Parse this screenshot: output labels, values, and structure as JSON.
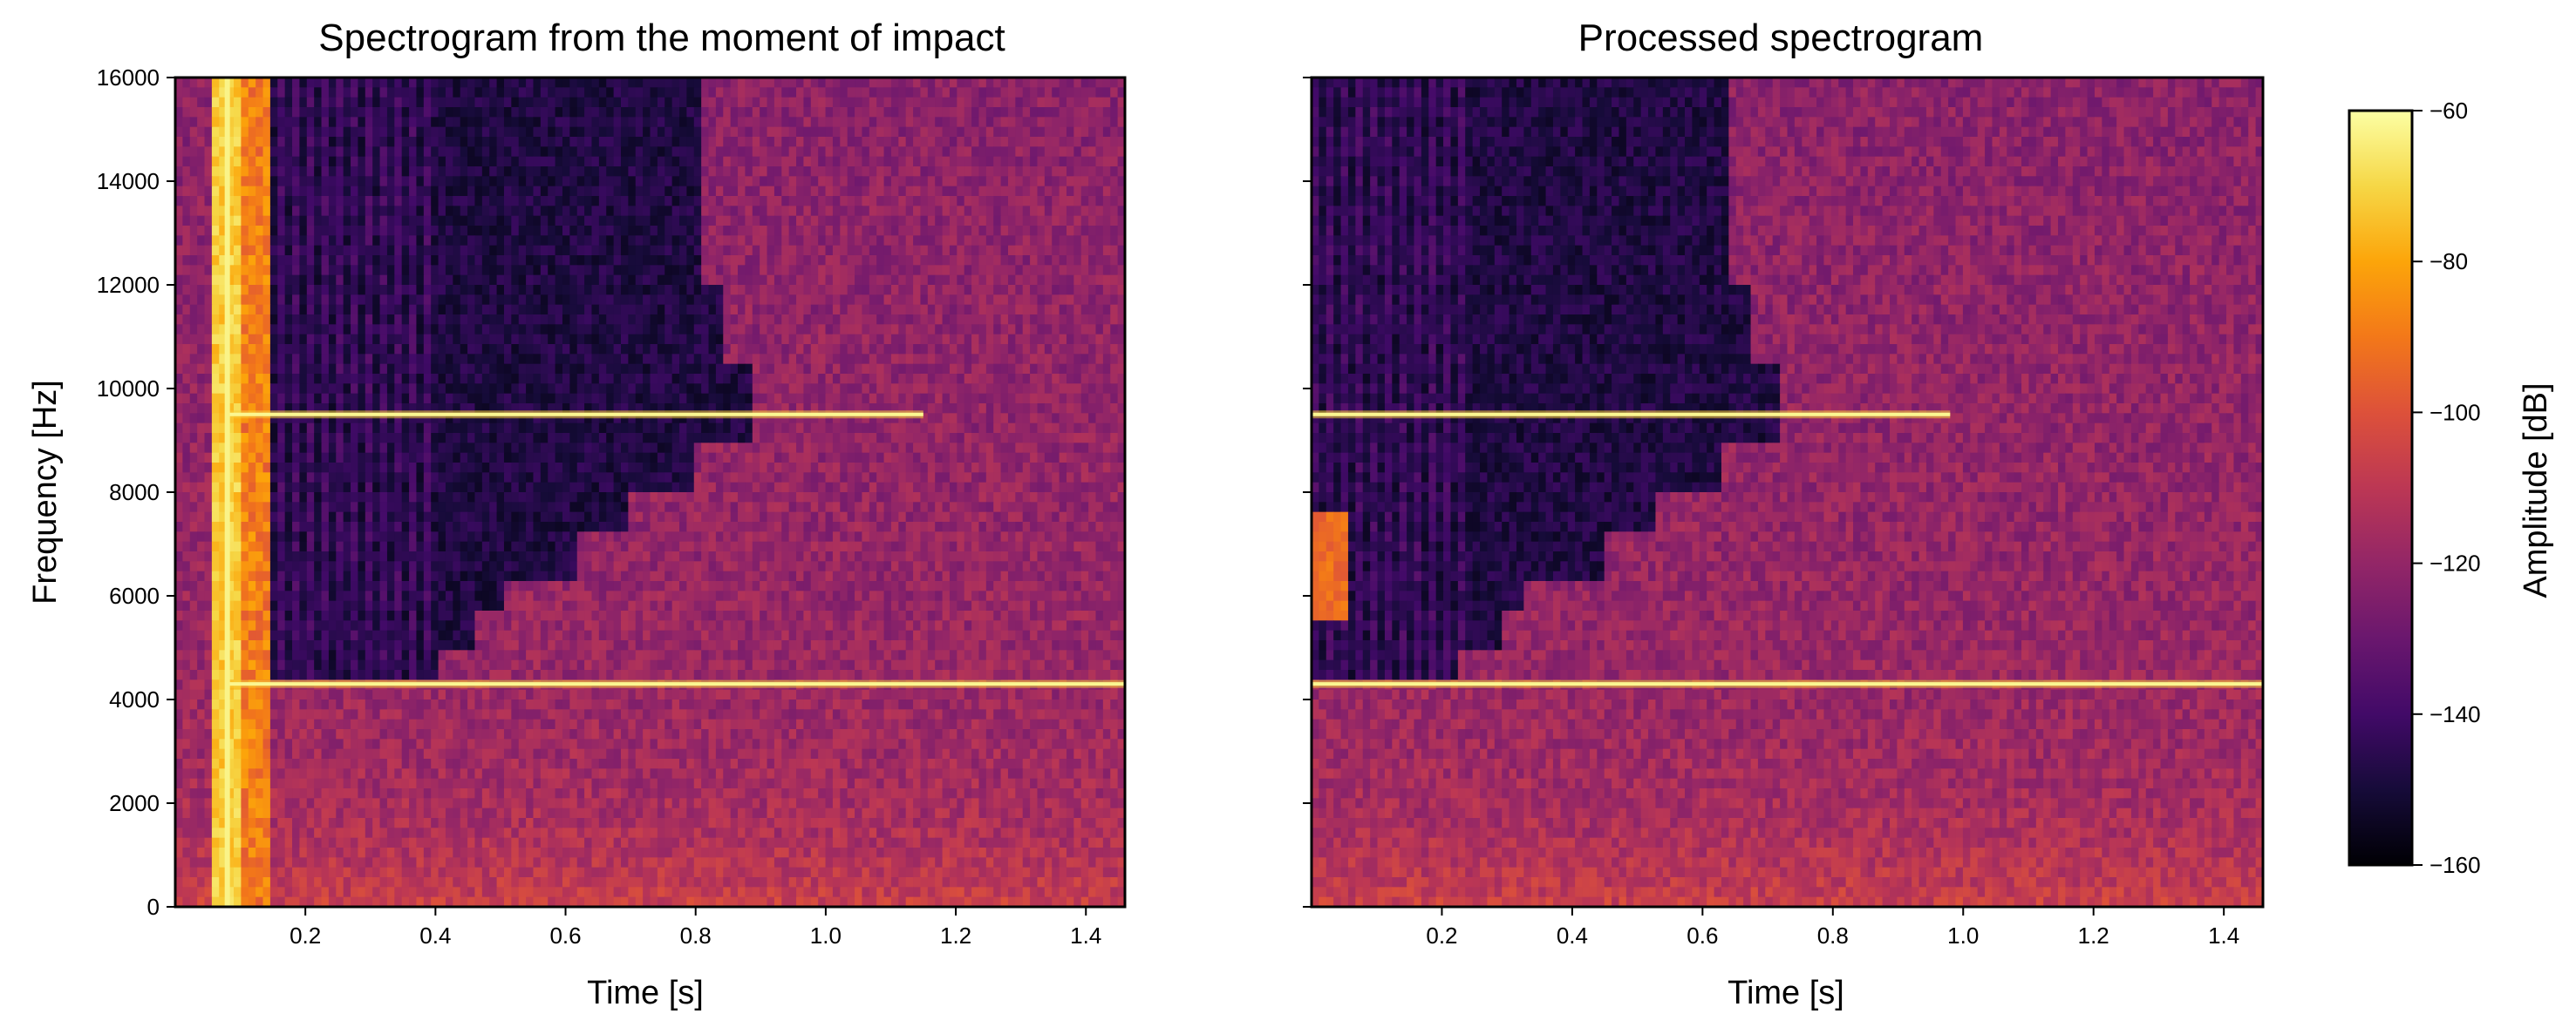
{
  "chart_data": {
    "type": "heatmap",
    "colormap": "inferno",
    "panels": [
      {
        "id": "raw",
        "title": "Spectrogram from the moment of impact",
        "xlabel": "Time [s]",
        "ylabel": "Frequency [Hz]",
        "xlim": [
          0.0,
          1.46
        ],
        "ylim": [
          0,
          16000
        ],
        "xticks": [
          0.2,
          0.4,
          0.6,
          0.8,
          1.0,
          1.2,
          1.4
        ],
        "xtick_labels": [
          "0.2",
          "0.4",
          "0.6",
          "0.8",
          "1.0",
          "1.2",
          "1.4"
        ],
        "yticks": [
          0,
          2000,
          4000,
          6000,
          8000,
          10000,
          12000,
          14000,
          16000
        ],
        "ytick_labels": [
          "0",
          "2000",
          "4000",
          "6000",
          "8000",
          "10000",
          "12000",
          "14000",
          "16000"
        ],
        "impact_time": 0.08,
        "tones": [
          {
            "frequency": 9500,
            "end_time": 1.15
          },
          {
            "frequency": 4300,
            "end_time": 1.46
          }
        ],
        "quiet_region_end_time": 0.82
      },
      {
        "id": "processed",
        "title": "Processed spectrogram",
        "xlabel": "Time [s]",
        "ylabel": "",
        "xlim": [
          0.0,
          1.46
        ],
        "ylim": [
          0,
          16000
        ],
        "xticks": [
          0.2,
          0.4,
          0.6,
          0.8,
          1.0,
          1.2,
          1.4
        ],
        "xtick_labels": [
          "0.2",
          "0.4",
          "0.6",
          "0.8",
          "1.0",
          "1.2",
          "1.4"
        ],
        "yticks": [
          0,
          2000,
          4000,
          6000,
          8000,
          10000,
          12000,
          14000,
          16000
        ],
        "ytick_labels": [],
        "tones": [
          {
            "frequency": 9500,
            "end_time": 0.98
          },
          {
            "frequency": 4300,
            "end_time": 1.46
          }
        ],
        "quiet_region_end_time": 0.65
      }
    ],
    "colorbar": {
      "label": "Amplitude [dB]",
      "range": [
        -160,
        -60
      ],
      "ticks": [
        -60,
        -80,
        -100,
        -120,
        -140,
        -160
      ],
      "tick_labels": [
        "−60",
        "−80",
        "−100",
        "−120",
        "−140",
        "−160"
      ]
    }
  }
}
